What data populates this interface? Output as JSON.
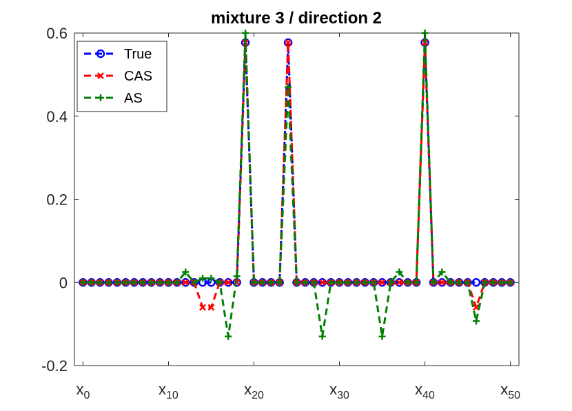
{
  "chart_data": {
    "type": "line",
    "title": "mixture 3 / direction 2",
    "xlabel": "",
    "ylabel": "",
    "xlim": [
      -1,
      51
    ],
    "ylim": [
      -0.2,
      0.6
    ],
    "yticks": [
      "-0.2",
      "0",
      "0.2",
      "0.4",
      "0.6"
    ],
    "ytick_values": [
      -0.2,
      0,
      0.2,
      0.4,
      0.6
    ],
    "xtick_values": [
      0,
      10,
      20,
      30,
      40,
      50
    ],
    "xticks": [
      {
        "base": "x",
        "sub": "0"
      },
      {
        "base": "x",
        "sub": "10"
      },
      {
        "base": "x",
        "sub": "20"
      },
      {
        "base": "x",
        "sub": "30"
      },
      {
        "base": "x",
        "sub": "40"
      },
      {
        "base": "x",
        "sub": "50"
      }
    ],
    "grid": false,
    "legend_position": "top-left",
    "x": [
      0,
      1,
      2,
      3,
      4,
      5,
      6,
      7,
      8,
      9,
      10,
      11,
      12,
      13,
      14,
      15,
      16,
      17,
      18,
      19,
      20,
      21,
      22,
      23,
      24,
      25,
      26,
      27,
      28,
      29,
      30,
      31,
      32,
      33,
      34,
      35,
      36,
      37,
      38,
      39,
      40,
      41,
      42,
      43,
      44,
      45,
      46,
      47,
      48,
      49,
      50
    ],
    "series": [
      {
        "name": "True",
        "color": "#0000ff",
        "marker": "circle",
        "values": [
          0,
          0,
          0,
          0,
          0,
          0,
          0,
          0,
          0,
          0,
          0,
          0,
          0,
          0,
          0,
          0,
          0,
          0,
          0,
          0.577,
          0,
          0,
          0,
          0,
          0.577,
          0,
          0,
          0,
          0,
          0,
          0,
          0,
          0,
          0,
          0,
          0,
          0,
          0,
          0,
          0,
          0.577,
          0,
          0,
          0,
          0,
          0,
          0,
          0,
          0,
          0,
          0
        ]
      },
      {
        "name": "CAS",
        "color": "#ff0000",
        "marker": "x",
        "values": [
          0,
          0,
          0,
          0,
          0,
          0,
          0,
          0,
          0,
          0,
          0,
          0,
          0,
          0,
          -0.06,
          -0.06,
          0,
          0,
          0,
          0.577,
          0,
          0,
          0,
          0,
          0.577,
          0,
          0,
          0,
          0,
          0,
          0,
          0,
          0,
          0,
          0,
          0,
          0,
          0,
          0,
          0,
          0.577,
          0,
          0,
          0,
          0,
          0,
          -0.06,
          0,
          0,
          0,
          0
        ]
      },
      {
        "name": "AS",
        "color": "#008000",
        "marker": "plus",
        "values": [
          0,
          0,
          0,
          0,
          0,
          0,
          0,
          0,
          0,
          0,
          0,
          0,
          0.025,
          0,
          0.01,
          0.01,
          0,
          -0.13,
          0.015,
          0.6,
          0,
          0,
          0,
          0,
          0.47,
          0,
          0,
          0,
          -0.13,
          0,
          0,
          0,
          0,
          0,
          0,
          -0.13,
          0,
          0.025,
          0,
          0,
          0.6,
          0,
          0.025,
          0,
          0,
          0,
          -0.093,
          0,
          0,
          0,
          0
        ]
      }
    ]
  }
}
